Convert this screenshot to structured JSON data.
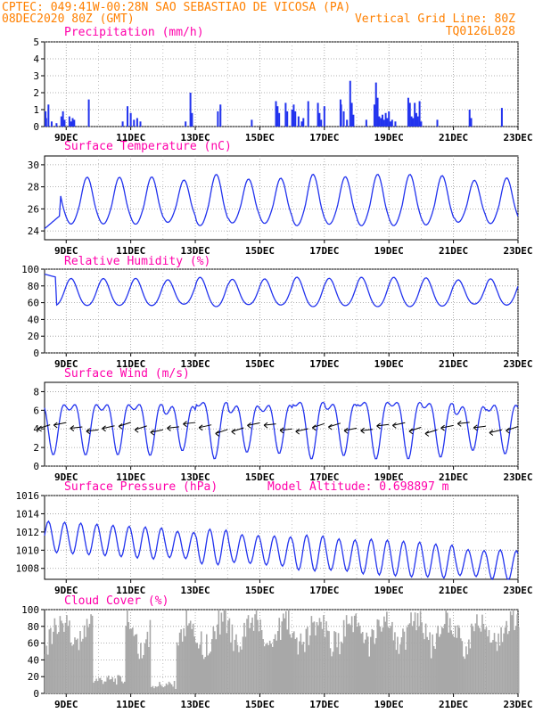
{
  "header": {
    "line1": "CPTEC:   049:41W-00:28N  SAO SEBASTIAO DE VICOSA (PA)",
    "line2_left": "08DEC2020 80Z (GMT)",
    "line2_right": "Vertical Grid Line: 80Z",
    "line3_right": "TQ0126L028"
  },
  "colors": {
    "header": "#ff8000",
    "title": "#ff00aa",
    "series": "#2233ee",
    "cloud": "#a8a8a8",
    "grid": "#999999"
  },
  "x_axis": {
    "range_days": [
      8.33,
      23.0
    ],
    "tick_labels": [
      "9DEC",
      "11DEC",
      "13DEC",
      "15DEC",
      "17DEC",
      "19DEC",
      "21DEC",
      "23DEC"
    ],
    "tick_days": [
      9,
      11,
      13,
      15,
      17,
      19,
      21,
      23
    ]
  },
  "chart_data": [
    {
      "type": "bar",
      "title": "Precipitation (mm/h)",
      "ylim": [
        0,
        5
      ],
      "yticks": [
        "0",
        "1",
        "2",
        "3",
        "4",
        "5"
      ],
      "grid": true,
      "bars": [
        [
          8.36,
          0.9
        ],
        [
          8.38,
          0.5
        ],
        [
          8.45,
          1.3
        ],
        [
          8.55,
          0.3
        ],
        [
          8.7,
          0.2
        ],
        [
          8.85,
          0.6
        ],
        [
          8.9,
          0.9
        ],
        [
          8.95,
          0.4
        ],
        [
          9.1,
          0.6
        ],
        [
          9.15,
          0.3
        ],
        [
          9.2,
          0.5
        ],
        [
          9.25,
          0.4
        ],
        [
          9.7,
          1.6
        ],
        [
          10.75,
          0.3
        ],
        [
          10.9,
          1.2
        ],
        [
          11.0,
          0.8
        ],
        [
          11.1,
          0.4
        ],
        [
          11.2,
          0.5
        ],
        [
          11.3,
          0.3
        ],
        [
          12.7,
          0.3
        ],
        [
          12.85,
          2.0
        ],
        [
          12.9,
          0.8
        ],
        [
          13.7,
          0.9
        ],
        [
          13.78,
          1.3
        ],
        [
          14.75,
          0.4
        ],
        [
          15.5,
          1.5
        ],
        [
          15.55,
          1.2
        ],
        [
          15.6,
          0.8
        ],
        [
          15.8,
          1.4
        ],
        [
          15.85,
          0.9
        ],
        [
          16.0,
          1.0
        ],
        [
          16.05,
          1.3
        ],
        [
          16.1,
          0.9
        ],
        [
          16.2,
          0.6
        ],
        [
          16.3,
          0.3
        ],
        [
          16.35,
          0.5
        ],
        [
          16.5,
          1.5
        ],
        [
          16.8,
          1.4
        ],
        [
          16.85,
          0.8
        ],
        [
          16.9,
          0.4
        ],
        [
          17.0,
          1.2
        ],
        [
          17.5,
          1.6
        ],
        [
          17.52,
          1.3
        ],
        [
          17.6,
          0.9
        ],
        [
          17.7,
          0.4
        ],
        [
          17.8,
          2.7
        ],
        [
          17.85,
          1.4
        ],
        [
          17.9,
          0.7
        ],
        [
          18.3,
          0.4
        ],
        [
          18.55,
          1.3
        ],
        [
          18.6,
          2.6
        ],
        [
          18.65,
          1.7
        ],
        [
          18.7,
          0.6
        ],
        [
          18.75,
          0.5
        ],
        [
          18.8,
          0.7
        ],
        [
          18.85,
          0.4
        ],
        [
          18.9,
          0.8
        ],
        [
          18.95,
          0.5
        ],
        [
          19.0,
          0.9
        ],
        [
          19.05,
          0.3
        ],
        [
          19.1,
          0.4
        ],
        [
          19.2,
          0.3
        ],
        [
          19.6,
          1.7
        ],
        [
          19.65,
          1.4
        ],
        [
          19.7,
          0.6
        ],
        [
          19.75,
          0.5
        ],
        [
          19.8,
          1.4
        ],
        [
          19.85,
          0.8
        ],
        [
          19.9,
          0.6
        ],
        [
          19.95,
          1.5
        ],
        [
          20.0,
          0.3
        ],
        [
          20.5,
          0.4
        ],
        [
          21.5,
          1.0
        ],
        [
          21.55,
          0.5
        ],
        [
          22.5,
          1.1
        ]
      ]
    },
    {
      "type": "line",
      "title": "Surface Temperature (nC)",
      "ylim": [
        23.2,
        30.8
      ],
      "yticks": [
        "24",
        "26",
        "28",
        "30"
      ],
      "ytick_values": [
        24,
        26,
        28,
        30
      ],
      "grid": true,
      "model": {
        "kind": "temp",
        "base": 26.2,
        "amp": 3.3,
        "peak": 0.65
      }
    },
    {
      "type": "line",
      "title": "Relative Humidity (%)",
      "ylim": [
        0,
        100
      ],
      "yticks": [
        "0",
        "20",
        "40",
        "60",
        "80",
        "100"
      ],
      "ytick_values": [
        0,
        20,
        40,
        60,
        80,
        100
      ],
      "grid": true,
      "model": {
        "kind": "rh",
        "base": 71,
        "amp": 16,
        "peak": 0.15
      }
    },
    {
      "type": "line",
      "title": "Surface Wind (m/s)",
      "ylim": [
        0,
        9
      ],
      "yticks": [
        "0",
        "2",
        "4",
        "6",
        "8"
      ],
      "ytick_values": [
        0,
        2,
        4,
        6,
        8
      ],
      "grid": true,
      "model": {
        "kind": "wind",
        "base": 4.8,
        "amp": 2.4,
        "peak": 0.1
      },
      "arrow_step_days": 0.5
    },
    {
      "type": "line",
      "title": "Surface Pressure (hPa)",
      "annotation": "Model Altitude: 0.698897 m",
      "ylim": [
        1006.8,
        1016.0
      ],
      "yticks": [
        "1008",
        "1010",
        "1012",
        "1014",
        "1016"
      ],
      "ytick_values": [
        1008,
        1010,
        1012,
        1014,
        1016
      ],
      "grid": true,
      "model": {
        "kind": "pres",
        "base": 1011.5,
        "trend": -0.22,
        "amp": 1.7
      }
    },
    {
      "type": "area",
      "title": "Cloud Cover (%)",
      "ylim": [
        0,
        100
      ],
      "yticks": [
        "0",
        "20",
        "40",
        "60",
        "80",
        "100"
      ],
      "ytick_values": [
        0,
        20,
        40,
        60,
        80,
        100
      ],
      "grid": true,
      "model": {
        "kind": "cloud"
      }
    }
  ]
}
